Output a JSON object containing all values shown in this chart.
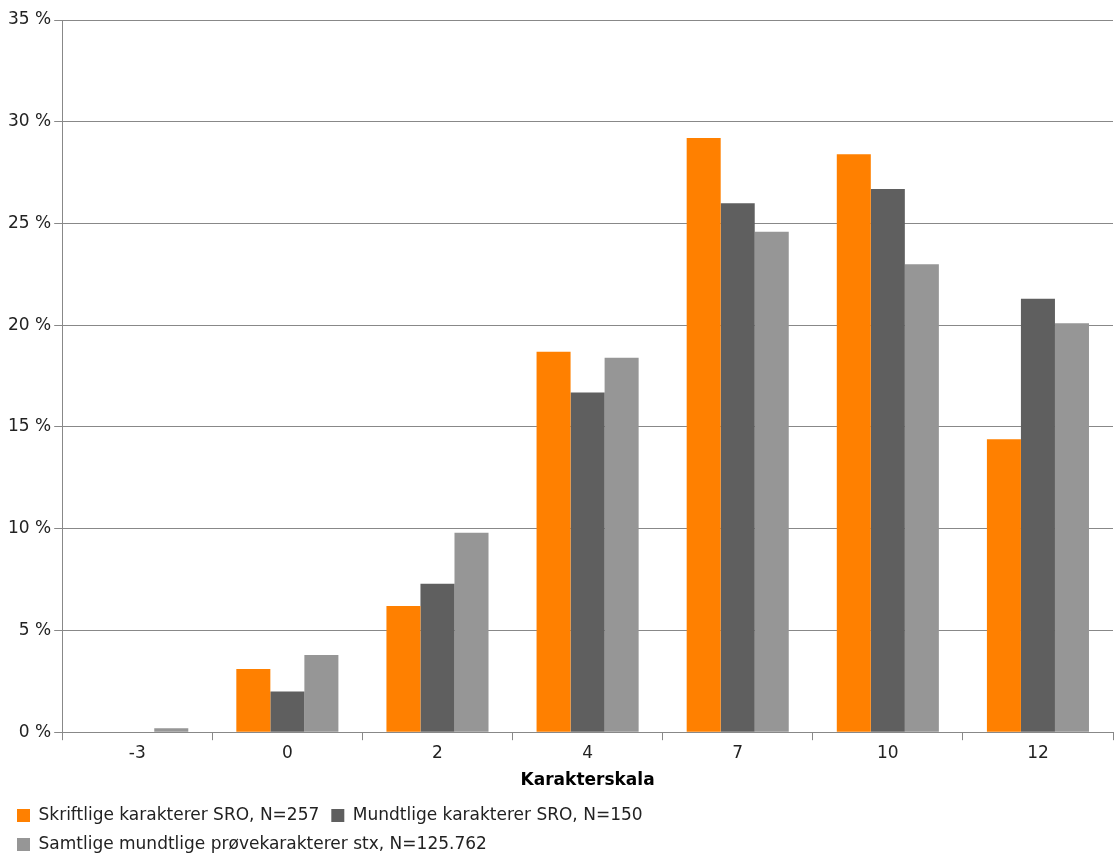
{
  "chart_data": {
    "type": "bar",
    "xlabel": "Karakterskala",
    "categories": [
      "-3",
      "0",
      "2",
      "4",
      "7",
      "10",
      "12"
    ],
    "series": [
      {
        "name": "Skriftlige karakterer SRO, N=257",
        "color": "#ff8000",
        "values": [
          0,
          3.1,
          6.2,
          18.7,
          29.2,
          28.4,
          14.4
        ]
      },
      {
        "name": "Mundtlige karakterer SRO, N=150",
        "color": "#5f5f5f",
        "values": [
          0,
          2.0,
          7.3,
          16.7,
          26.0,
          26.7,
          21.3
        ]
      },
      {
        "name": "Samtlige mundtlige prøvekarakterer stx, N=125.762",
        "color": "#969696",
        "values": [
          0.2,
          3.8,
          9.8,
          18.4,
          24.6,
          23.0,
          20.1
        ]
      }
    ],
    "ylim": [
      0,
      35
    ],
    "yticks": [
      {
        "value": 0,
        "label": "0 %"
      },
      {
        "value": 5,
        "label": "5 %"
      },
      {
        "value": 10,
        "label": "10 %"
      },
      {
        "value": 15,
        "label": "15 %"
      },
      {
        "value": 20,
        "label": "20 %"
      },
      {
        "value": 25,
        "label": "25 %"
      },
      {
        "value": 30,
        "label": "30 %"
      },
      {
        "value": 35,
        "label": "35 %"
      }
    ],
    "grid": "y",
    "legend": "bottom"
  }
}
